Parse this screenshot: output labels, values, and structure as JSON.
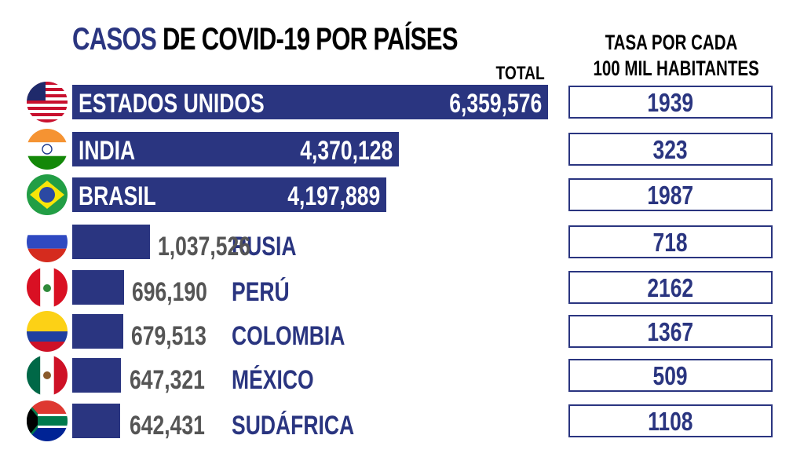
{
  "title": {
    "part1": "CASOS",
    "part2": " DE COVID-19 POR PAÍSES"
  },
  "total_header": "TOTAL",
  "rate_header": {
    "line1": "TASA POR CADA",
    "line2": "100 MIL HABITANTES"
  },
  "colors": {
    "navy": "#2a3580",
    "inside_text": "#ffffff",
    "outside_value": "#555555",
    "outside_name": "#2a3580"
  },
  "chart_data": {
    "type": "bar",
    "orientation": "horizontal",
    "title": "CASOS DE COVID-19 POR PAÍSES",
    "categories": [
      "ESTADOS UNIDOS",
      "INDIA",
      "BRASIL",
      "RUSIA",
      "PERÚ",
      "COLOMBIA",
      "MÉXICO",
      "SUDÁFRICA"
    ],
    "series": [
      {
        "name": "TOTAL",
        "values": [
          6359576,
          4370128,
          4197889,
          1037526,
          696190,
          679513,
          647321,
          642431
        ]
      },
      {
        "name": "TASA POR CADA 100 MIL HABITANTES",
        "values": [
          1939,
          323,
          1987,
          718,
          2162,
          1367,
          509,
          1108
        ]
      }
    ],
    "value_labels": [
      "6,359,576",
      "4,370,128",
      "4,197,889",
      "1,037,526",
      "696,190",
      "679,513",
      "647,321",
      "642,431"
    ],
    "rate_labels": [
      "1939",
      "323",
      "1987",
      "718",
      "2162",
      "1367",
      "509",
      "1108"
    ],
    "flags": [
      "usa-flag-icon",
      "india-flag-icon",
      "brazil-flag-icon",
      "russia-flag-icon",
      "peru-flag-icon",
      "colombia-flag-icon",
      "mexico-flag-icon",
      "south-africa-flag-icon"
    ],
    "grid": false,
    "legend": "none"
  }
}
